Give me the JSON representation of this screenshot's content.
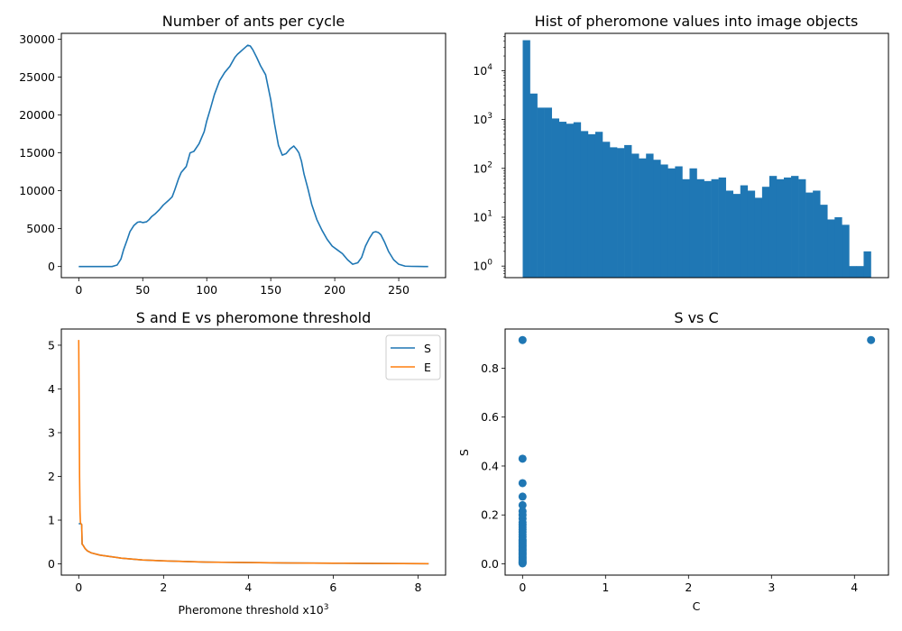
{
  "colors": {
    "blue": "#1f77b4",
    "orange": "#ff7f0e"
  },
  "chart_data": [
    {
      "id": "ants",
      "type": "line",
      "title": "Number of ants per cycle",
      "xlabel": "",
      "ylabel": "",
      "xlim": [
        -13.6,
        286.6
      ],
      "ylim": [
        -1465,
        30765
      ],
      "xticks": [
        0,
        50,
        100,
        150,
        200,
        250
      ],
      "yticks": [
        0,
        5000,
        10000,
        15000,
        20000,
        25000,
        30000
      ],
      "grid": false,
      "series": [
        {
          "color": "#1f77b4",
          "x": [
            0,
            10,
            20,
            26,
            30,
            33,
            35,
            38,
            40,
            43,
            46,
            48,
            50,
            53,
            55,
            57,
            60,
            63,
            66,
            70,
            73,
            75,
            78,
            80,
            82,
            84,
            87,
            90,
            94,
            98,
            100,
            103,
            106,
            110,
            114,
            118,
            122,
            124,
            126,
            128,
            130,
            132,
            134,
            136,
            139,
            142,
            146,
            150,
            153,
            156,
            159,
            162,
            165,
            168,
            170,
            172,
            174,
            176,
            179,
            182,
            186,
            190,
            194,
            198,
            202,
            206,
            210,
            214,
            218,
            221,
            224,
            227,
            230,
            232,
            234,
            236,
            239,
            242,
            246,
            250,
            255,
            260,
            265,
            270,
            273
          ],
          "y": [
            0,
            0,
            0,
            0,
            200,
            1000,
            2200,
            3600,
            4600,
            5400,
            5850,
            5900,
            5800,
            5900,
            6200,
            6600,
            7000,
            7500,
            8100,
            8700,
            9200,
            10100,
            11600,
            12400,
            12800,
            13200,
            15000,
            15200,
            16200,
            17800,
            19200,
            20900,
            22700,
            24500,
            25600,
            26400,
            27600,
            28000,
            28300,
            28600,
            28900,
            29200,
            29100,
            28600,
            27600,
            26500,
            25300,
            22000,
            18800,
            16000,
            14700,
            14900,
            15500,
            15900,
            15500,
            15000,
            13900,
            12200,
            10300,
            8200,
            6200,
            4800,
            3600,
            2700,
            2200,
            1700,
            900,
            300,
            500,
            1200,
            2700,
            3700,
            4500,
            4600,
            4500,
            4200,
            3200,
            2000,
            900,
            300,
            50,
            20,
            10,
            5,
            0
          ]
        }
      ]
    },
    {
      "id": "hist",
      "type": "bar",
      "title": "Hist of pheromone values into image objects",
      "xlabel": "",
      "ylabel": "",
      "yscale": "log",
      "ylim": [
        0.58,
        58000
      ],
      "yticks": [
        1,
        10,
        100,
        1000,
        10000
      ],
      "ytick_labels": [
        "10",
        "10",
        "10",
        "10",
        "10"
      ],
      "ytick_exponents": [
        "0",
        "1",
        "2",
        "3",
        "4"
      ],
      "xticks_visible": false,
      "grid": false,
      "values": [
        42000,
        3400,
        1750,
        1750,
        1050,
        900,
        820,
        880,
        580,
        500,
        560,
        350,
        270,
        260,
        300,
        200,
        160,
        200,
        150,
        120,
        100,
        110,
        60,
        100,
        60,
        55,
        60,
        65,
        35,
        30,
        45,
        35,
        25,
        42,
        70,
        60,
        65,
        70,
        60,
        32,
        35,
        18,
        9,
        10,
        7,
        1,
        1,
        2
      ]
    },
    {
      "id": "se",
      "type": "line",
      "title": "S and E vs pheromone threshold",
      "xlabel": "Pheromone threshold x10",
      "xlabel_sup": "3",
      "ylabel": "",
      "xlim": [
        -0.41,
        8.65
      ],
      "ylim": [
        -0.257,
        5.37
      ],
      "xticks": [
        0,
        2,
        4,
        6,
        8
      ],
      "yticks": [
        0,
        1,
        2,
        3,
        4,
        5
      ],
      "legend": "top-right",
      "grid": false,
      "series": [
        {
          "name": "S",
          "color": "#1f77b4",
          "x": [
            0.001,
            0.03,
            0.05,
            0.07,
            0.08,
            0.1,
            0.15,
            0.2,
            0.3,
            0.5,
            0.8,
            1.0,
            1.5,
            2.0,
            3.0,
            4.0,
            5.0,
            6.0,
            7.0,
            8.25
          ],
          "y": [
            0.92,
            0.92,
            0.92,
            0.9,
            0.45,
            0.43,
            0.35,
            0.3,
            0.25,
            0.2,
            0.16,
            0.13,
            0.09,
            0.07,
            0.04,
            0.03,
            0.02,
            0.015,
            0.01,
            0.005
          ]
        },
        {
          "name": "E",
          "color": "#ff7f0e",
          "x": [
            0.0,
            0.01,
            0.02,
            0.03,
            0.04,
            0.05,
            0.07,
            0.08,
            0.1,
            0.15,
            0.2,
            0.3,
            0.5,
            0.8,
            1.0,
            1.5,
            2.0,
            3.0,
            4.0,
            5.0,
            6.0,
            7.0,
            8.25
          ],
          "y": [
            5.12,
            3.5,
            2.0,
            1.2,
            0.95,
            0.92,
            0.9,
            0.45,
            0.43,
            0.35,
            0.3,
            0.25,
            0.2,
            0.16,
            0.13,
            0.09,
            0.07,
            0.04,
            0.03,
            0.02,
            0.015,
            0.01,
            0.005
          ]
        }
      ]
    },
    {
      "id": "sc",
      "type": "scatter",
      "title": "S vs C",
      "xlabel": "C",
      "ylabel": "S",
      "xlim": [
        -0.21,
        4.41
      ],
      "ylim": [
        -0.046,
        0.96
      ],
      "xticks": [
        0,
        1,
        2,
        3,
        4
      ],
      "yticks": [
        0.0,
        0.2,
        0.4,
        0.6,
        0.8
      ],
      "ytick_labels": [
        "0.0",
        "0.2",
        "0.4",
        "0.6",
        "0.8"
      ],
      "grid": false,
      "series": [
        {
          "color": "#1f77b4",
          "x": [
            0,
            0,
            0,
            0,
            0,
            0,
            0,
            0,
            0,
            0,
            0,
            0,
            0,
            0,
            0,
            0,
            0,
            0,
            0,
            0,
            0,
            0,
            0,
            0,
            0,
            0,
            0,
            0,
            0,
            0,
            0,
            0,
            0,
            0,
            0,
            0,
            0,
            4.2
          ],
          "y": [
            0.915,
            0.43,
            0.33,
            0.275,
            0.24,
            0.215,
            0.2,
            0.185,
            0.17,
            0.16,
            0.15,
            0.14,
            0.13,
            0.12,
            0.11,
            0.1,
            0.095,
            0.09,
            0.085,
            0.08,
            0.075,
            0.07,
            0.065,
            0.06,
            0.055,
            0.05,
            0.045,
            0.04,
            0.035,
            0.03,
            0.025,
            0.02,
            0.015,
            0.01,
            0.007,
            0.004,
            0.002,
            0.915
          ]
        }
      ]
    }
  ]
}
